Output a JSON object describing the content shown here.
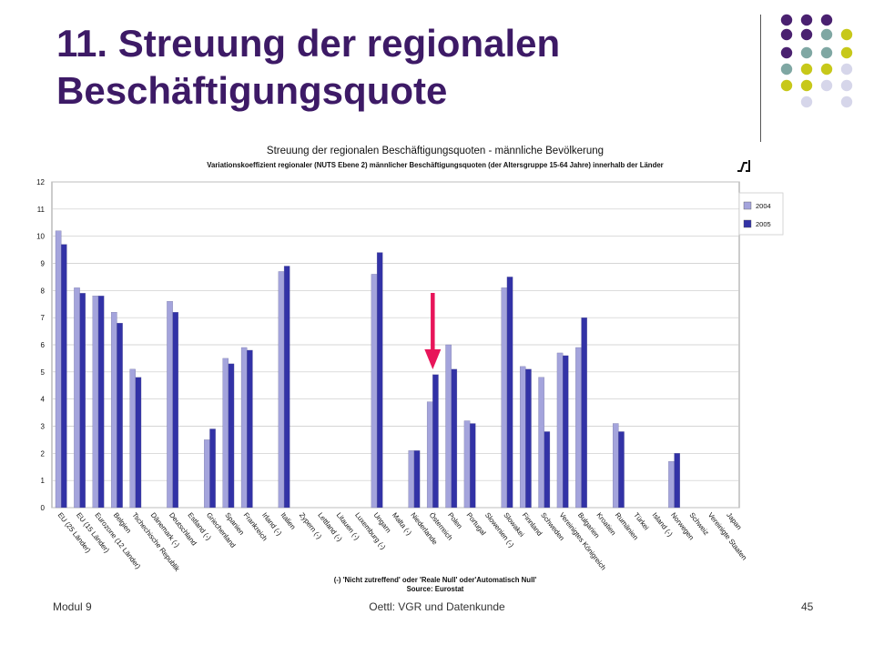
{
  "slide": {
    "title_line1": "11. Streuung der regionalen",
    "title_line2": "Beschäftigungsquote",
    "footer_left": "Modul 9",
    "footer_center": "Oettl: VGR und Datenkunde",
    "footer_right": "45"
  },
  "decoration": {
    "dot_colors": [
      "#4a2170",
      "#7fa7a3",
      "#c7c81a",
      "#d6d6ea"
    ],
    "arrow_color": "#e8155a",
    "arrow_target": "Österreich"
  },
  "chart_data": {
    "type": "bar",
    "title": "Streuung der regionalen Beschäftigungsquoten - männliche Bevölkerung",
    "subtitle": "Variationskoeffizient regionaler (NUTS Ebene 2) männlicher Beschäftigungsquoten (der Altersgruppe 15-64 Jahre) innerhalb der Länder",
    "categories": [
      "EU (25 Länder)",
      "EU (15 Länder)",
      "Eurozone (12 Länder)",
      "Belgien",
      "Tschechische Republik",
      "Dänemark (-)",
      "Deutschland",
      "Estland (-)",
      "Griechenland",
      "Spanien",
      "Frankreich",
      "Irland (-)",
      "Italien",
      "Zypern (-)",
      "Lettland (-)",
      "Litauen (-)",
      "Luxemburg (-)",
      "Ungarn",
      "Malta (-)",
      "Niederlande",
      "Österreich",
      "Polen",
      "Portugal",
      "Slowenien (-)",
      "Slowakei",
      "Finnland",
      "Schweden",
      "Vereinigtes Königreich",
      "Bulgarien",
      "Kroatien",
      "Rumänien",
      "Türkei",
      "Island (-)",
      "Norwegen",
      "Schweiz",
      "Vereinigte Staaten",
      "Japan"
    ],
    "series": [
      {
        "name": "2004",
        "color": "#a4a4dc",
        "values": [
          10.2,
          8.1,
          7.8,
          7.2,
          5.1,
          0,
          7.6,
          0,
          2.5,
          5.5,
          5.9,
          0,
          8.7,
          0,
          0,
          0,
          0,
          8.6,
          0,
          2.1,
          3.9,
          6.0,
          3.2,
          0,
          8.1,
          5.2,
          4.8,
          5.7,
          5.9,
          0,
          3.1,
          0,
          0,
          1.7,
          0,
          0,
          0
        ]
      },
      {
        "name": "2005",
        "color": "#3232a6",
        "values": [
          9.7,
          7.9,
          7.8,
          6.8,
          4.8,
          0,
          7.2,
          0,
          2.9,
          5.3,
          5.8,
          0,
          8.9,
          0,
          0,
          0,
          0,
          9.4,
          0,
          2.1,
          4.9,
          5.1,
          3.1,
          0,
          8.5,
          5.1,
          2.8,
          5.6,
          7.0,
          0,
          2.8,
          0,
          0,
          2.0,
          0,
          0,
          0
        ]
      }
    ],
    "ylim": [
      0,
      12
    ],
    "yticks": [
      0,
      1,
      2,
      3,
      4,
      5,
      6,
      7,
      8,
      9,
      10,
      11,
      12
    ],
    "grid": true,
    "legend_position": "right",
    "note": "(-) 'Nicht zutreffend' oder 'Reale Null' oder'Automatisch Null'",
    "source": "Source: Eurostat"
  }
}
